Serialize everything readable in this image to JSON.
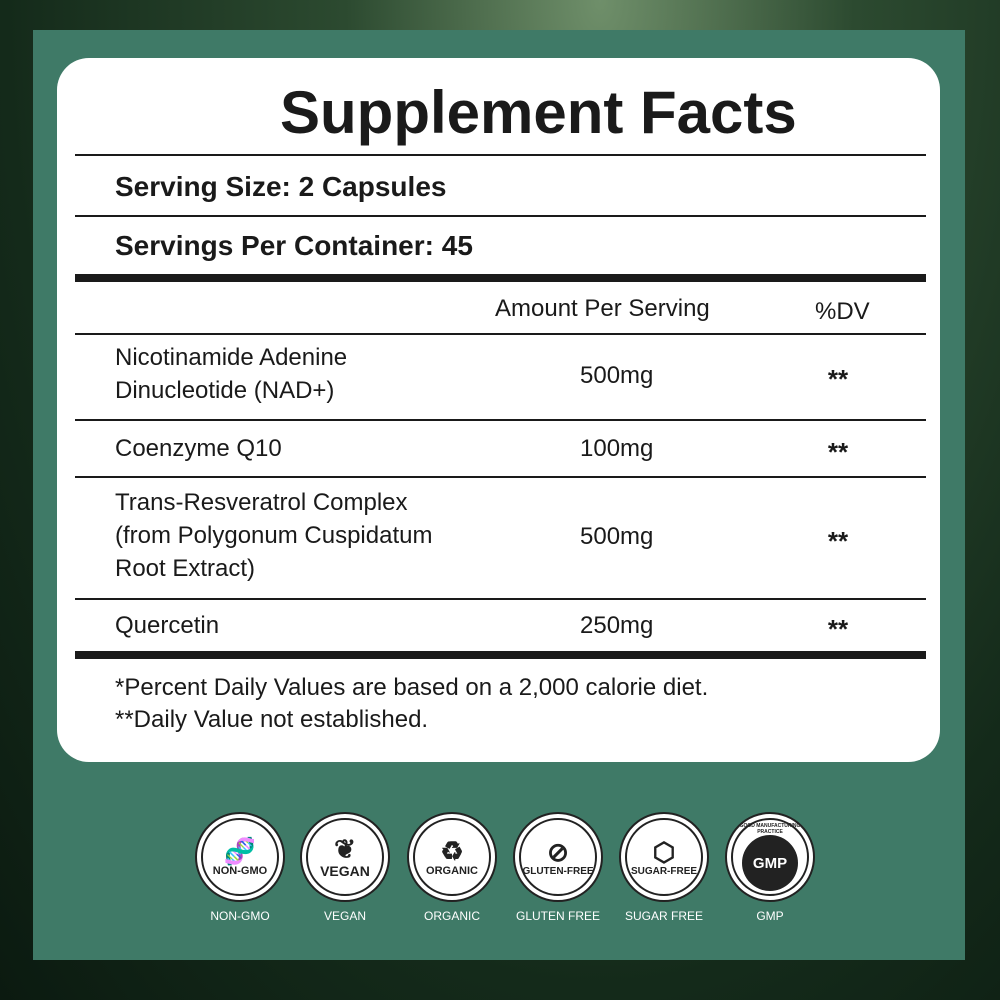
{
  "title": "Supplement Facts",
  "serving_size": "Serving Size: 2 Capsules",
  "servings_per_container": "Servings Per Container: 45",
  "columns": {
    "amount": "Amount Per Serving",
    "dv": "%DV"
  },
  "rows": [
    {
      "name_lines": [
        "Nicotinamide Adenine",
        "Dinucleotide (NAD+)"
      ],
      "amount": "500mg",
      "dv": "**"
    },
    {
      "name_lines": [
        "Coenzyme Q10"
      ],
      "amount": "100mg",
      "dv": "**"
    },
    {
      "name_lines": [
        "Trans-Resveratrol Complex",
        "(from Polygonum Cuspidatum",
        "Root Extract)"
      ],
      "amount": "500mg",
      "dv": "**"
    },
    {
      "name_lines": [
        "Quercetin"
      ],
      "amount": "250mg",
      "dv": "**"
    }
  ],
  "footnotes": [
    "*Percent Daily Values are based on a 2,000 calorie diet.",
    "**Daily Value not established."
  ],
  "badges": [
    {
      "icon": "dna-icon",
      "badge_text": "NON-GMO",
      "label": "NON-GMO"
    },
    {
      "icon": "leaf-icon",
      "badge_text": "VEGAN",
      "label": "VEGAN"
    },
    {
      "icon": "recycle-leaf-icon",
      "badge_text": "ORGANIC",
      "label": "ORGANIC"
    },
    {
      "icon": "wheat-crossed-icon",
      "badge_text": "GLUTEN-FREE",
      "label": "GLUTEN FREE"
    },
    {
      "icon": "sugar-cube-crossed-icon",
      "badge_text": "SUGAR-FREE",
      "label": "SUGAR FREE"
    },
    {
      "icon": "gmp-seal-icon",
      "badge_text": "GMP",
      "ring_text": "GOOD MANUFACTURING PRACTICE",
      "label": "GMP"
    }
  ],
  "colors": {
    "panel": "#3f7a67",
    "card": "#ffffff",
    "text": "#1a1a1a"
  }
}
